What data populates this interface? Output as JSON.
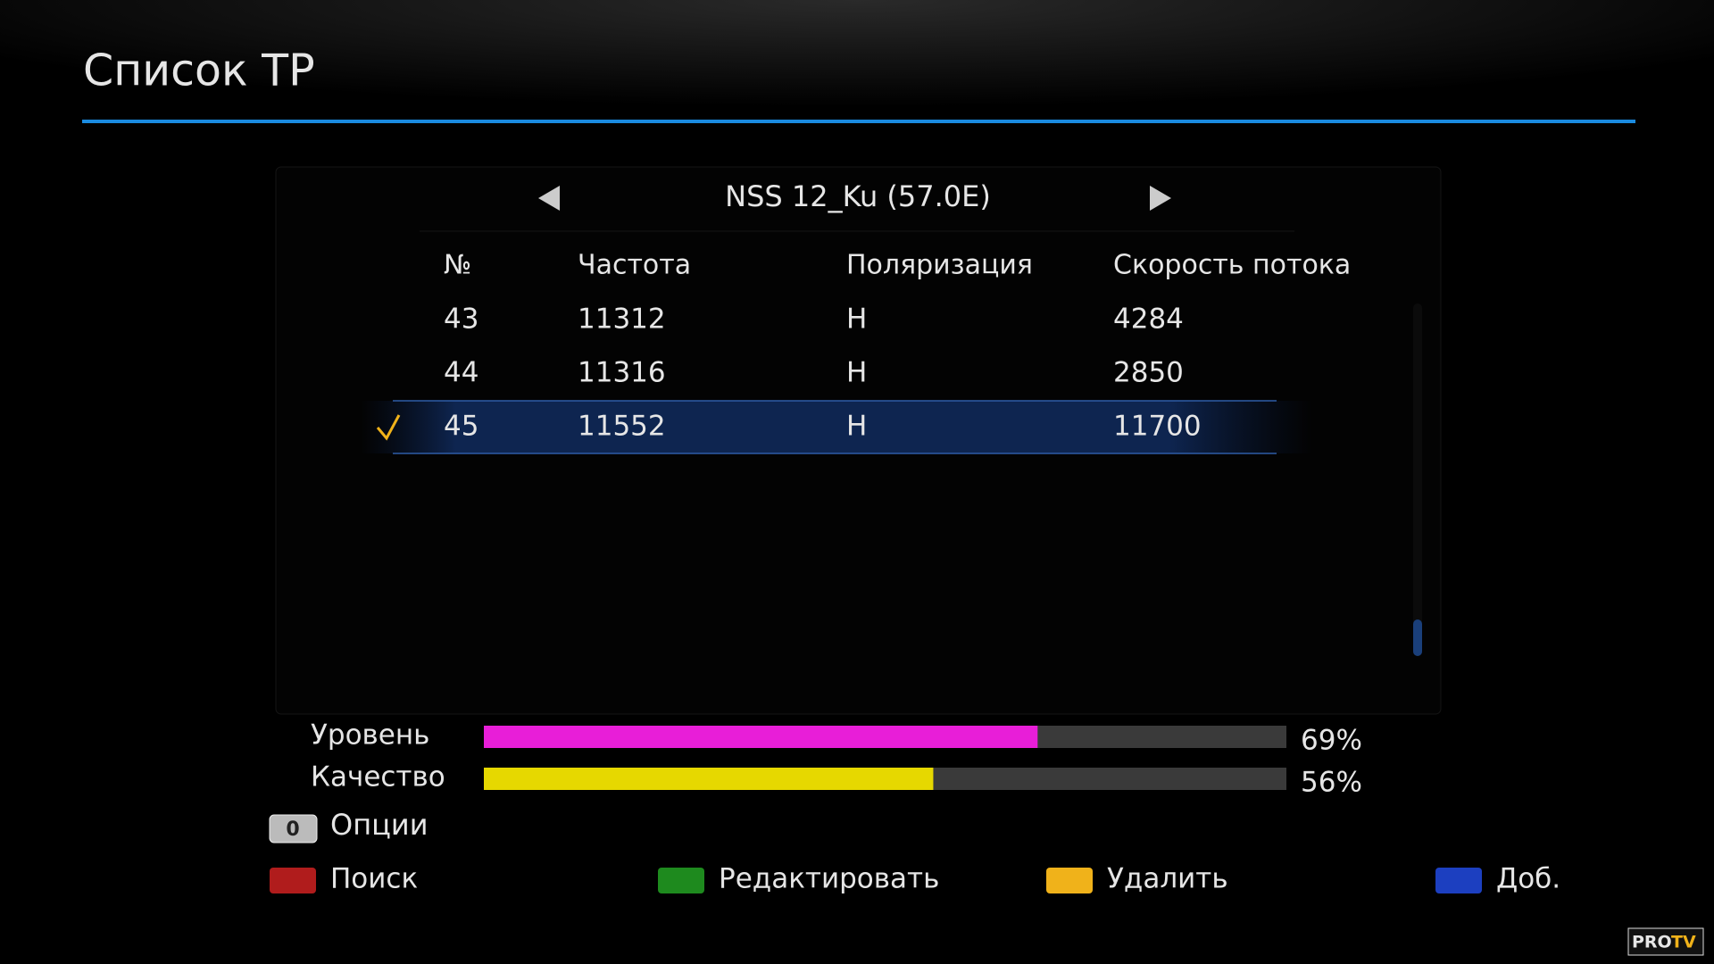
{
  "header": {
    "title": "Список TP"
  },
  "satellite": "NSS 12_Ku (57.0E)",
  "table": {
    "columns": [
      "№",
      "Частота",
      "Поляризация",
      "Скорость потока"
    ],
    "rows": [
      {
        "cells": [
          "43",
          "11312",
          "H",
          "4284"
        ],
        "selected": false
      },
      {
        "cells": [
          "44",
          "11316",
          "H",
          "2850"
        ],
        "selected": false
      },
      {
        "cells": [
          "45",
          "11552",
          "H",
          "11700"
        ],
        "selected": true
      }
    ]
  },
  "signal": [
    {
      "label": "Уровень",
      "value": 69,
      "value_label": "69%",
      "color": "#e81ed8"
    },
    {
      "label": "Качество",
      "value": 56,
      "value_label": "56%",
      "color": "#e6d800"
    }
  ],
  "options": {
    "key": "0",
    "label": "Опции"
  },
  "buttons": [
    {
      "label": "Поиск",
      "color": "#b01c1c"
    },
    {
      "label": "Редактировать",
      "color": "#1e8a1e"
    },
    {
      "label": "Удалить",
      "color": "#f0b21a"
    },
    {
      "label": "Доб.",
      "color": "#1c3fc0"
    }
  ],
  "watermark": [
    "PRO",
    "TV"
  ]
}
